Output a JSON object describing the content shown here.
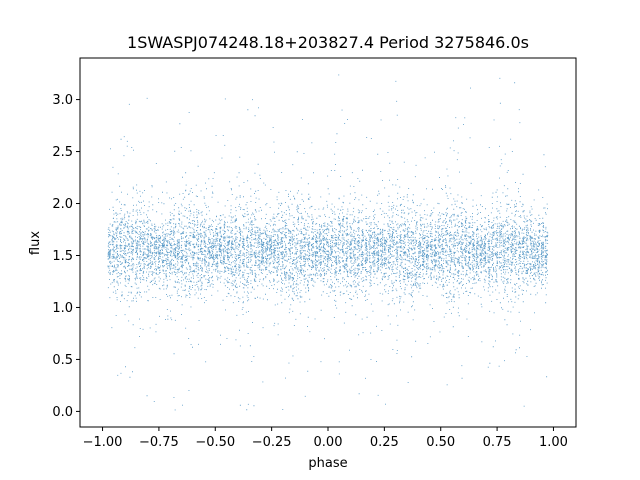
{
  "chart_data": {
    "type": "scatter",
    "title": "1SWASPJ074248.18+203827.4 Period 3275846.0s",
    "xlabel": "phase",
    "ylabel": "flux",
    "xlim": [
      -1.1,
      1.1
    ],
    "ylim": [
      -0.15,
      3.4
    ],
    "xticks": [
      -1.0,
      -0.75,
      -0.5,
      -0.25,
      0.0,
      0.25,
      0.5,
      0.75,
      1.0
    ],
    "xtick_labels": [
      "−1.00",
      "−0.75",
      "−0.50",
      "−0.25",
      "0.00",
      "0.25",
      "0.50",
      "0.75",
      "1.00"
    ],
    "yticks": [
      0.0,
      0.5,
      1.0,
      1.5,
      2.0,
      2.5,
      3.0
    ],
    "ytick_labels": [
      "0.0",
      "0.5",
      "1.0",
      "1.5",
      "2.0",
      "2.5",
      "3.0"
    ],
    "grid": false,
    "marker_color": "#1f77b4",
    "series": [
      {
        "name": "",
        "x_range": [
          -0.98,
          0.98
        ],
        "y_typical_range": [
          1.0,
          2.1
        ],
        "y_full_range": [
          0.0,
          3.3
        ],
        "point_count": 9000
      }
    ]
  }
}
